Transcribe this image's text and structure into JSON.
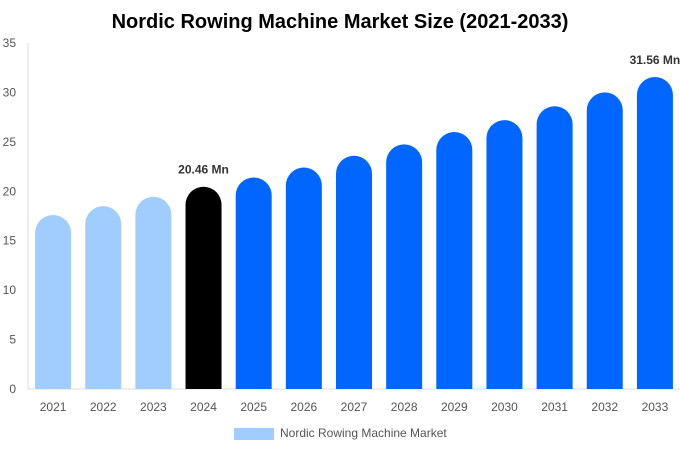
{
  "chart_data": {
    "type": "bar",
    "title": "Nordic Rowing Machine Market Size (2021-2033)",
    "categories": [
      "2021",
      "2022",
      "2023",
      "2024",
      "2025",
      "2026",
      "2027",
      "2028",
      "2029",
      "2030",
      "2031",
      "2032",
      "2033"
    ],
    "series": [
      {
        "name": "Nordic Rowing Machine Market",
        "values": [
          17.6,
          18.5,
          19.45,
          20.46,
          21.4,
          22.4,
          23.6,
          24.75,
          26.0,
          27.2,
          28.6,
          30.0,
          31.56
        ]
      }
    ],
    "data_labels": [
      {
        "index": 3,
        "text": "20.46 Mn"
      },
      {
        "index": 12,
        "text": "31.56 Mn"
      }
    ],
    "ylim": [
      0,
      35
    ],
    "yticks": [
      0,
      5,
      10,
      15,
      20,
      25,
      30,
      35
    ],
    "xlabel": "",
    "ylabel": "",
    "grid": false,
    "legend_position": "bottom",
    "colors": {
      "historical": "#a0cdfd",
      "current": "#000000",
      "forecast": "#0066ff"
    },
    "historical_count": 3,
    "current_index": 3
  }
}
